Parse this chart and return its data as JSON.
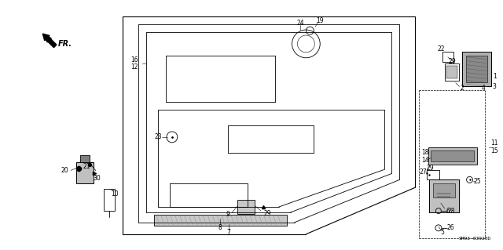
{
  "background_color": "#ffffff",
  "line_color": "#000000",
  "figsize": [
    6.4,
    3.19
  ],
  "dpi": 100,
  "diagram_code": "SM93-03920D",
  "fr_label": "FR.",
  "font_size": 5.5
}
